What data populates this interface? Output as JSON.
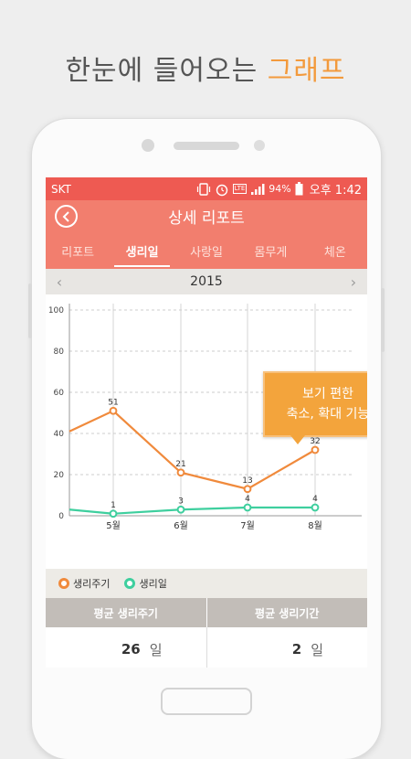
{
  "headline": {
    "text": "한눈에 들어오는",
    "accent": "그래프"
  },
  "status": {
    "carrier": "SKT",
    "battery_pct": "94%",
    "time": "오후 1:42",
    "lte": "LTE"
  },
  "appbar": {
    "title": "상세 리포트"
  },
  "tabs": [
    {
      "label": "리포트",
      "active": false
    },
    {
      "label": "생리일",
      "active": true
    },
    {
      "label": "사랑일",
      "active": false
    },
    {
      "label": "몸무게",
      "active": false
    },
    {
      "label": "체온",
      "active": false
    }
  ],
  "year_nav": {
    "year": "2015",
    "prev": "‹",
    "next": "›"
  },
  "callout": {
    "line1": "보기 편한",
    "line2": "축소, 확대 기능"
  },
  "legend": [
    {
      "label": "생리주기",
      "color": "#f08a3c"
    },
    {
      "label": "생리일",
      "color": "#3ecf9e"
    }
  ],
  "summary": {
    "left_header": "평균 생리주기",
    "right_header": "평균 생리기간",
    "left_value": "26",
    "left_unit": "일",
    "right_value": "2",
    "right_unit": "일"
  },
  "chart_data": {
    "type": "line",
    "categories": [
      "5월",
      "6월",
      "7월",
      "8월"
    ],
    "ylim": [
      0,
      100
    ],
    "yticks": [
      0,
      20,
      40,
      60,
      80,
      100
    ],
    "series": [
      {
        "name": "생리주기",
        "color": "#f08a3c",
        "values": [
          51,
          21,
          13,
          32
        ],
        "lead_in_value": 41
      },
      {
        "name": "생리일",
        "color": "#3ecf9e",
        "values": [
          1,
          3,
          4,
          4
        ],
        "lead_in_value": 3
      }
    ],
    "grid": true
  }
}
